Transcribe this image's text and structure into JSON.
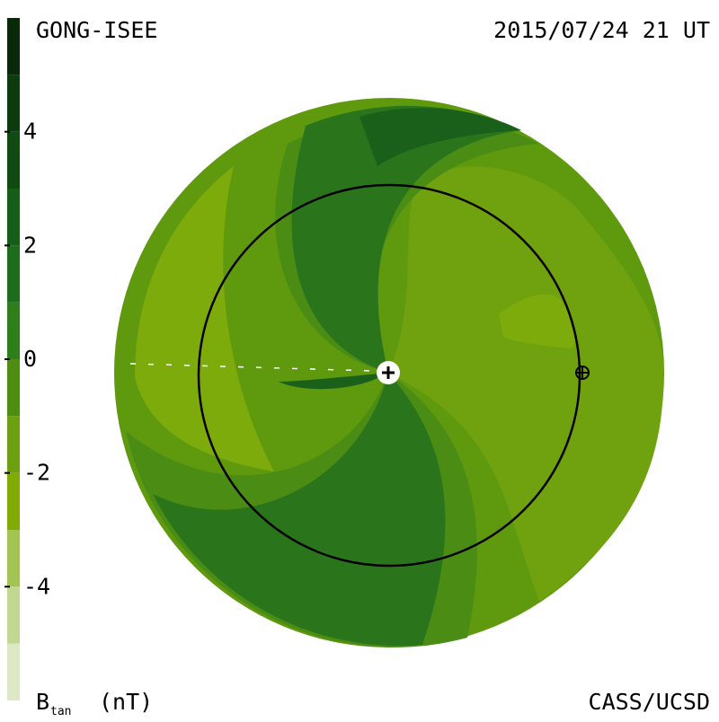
{
  "header": {
    "source": "GONG-ISEE",
    "time": "2015/07/24 21 UT"
  },
  "footer": {
    "credit": "CASS/UCSD"
  },
  "colorbar": {
    "label": "B",
    "label_subscript": "tan",
    "unit": "(nT)",
    "levels": [
      -6,
      -5,
      -4,
      -3,
      -2,
      -1,
      0,
      1,
      2,
      3,
      4,
      5,
      6
    ],
    "colors": [
      "#dde8c6",
      "#c2d890",
      "#a3c452",
      "#80ab00",
      "#6da010",
      "#4f8d12",
      "#2f7e1c",
      "#1e6d1c",
      "#165e18",
      "#104c12",
      "#0c3c0e",
      "#082a0a"
    ],
    "ticks": [
      4,
      2,
      0,
      -2,
      -4
    ]
  }
}
